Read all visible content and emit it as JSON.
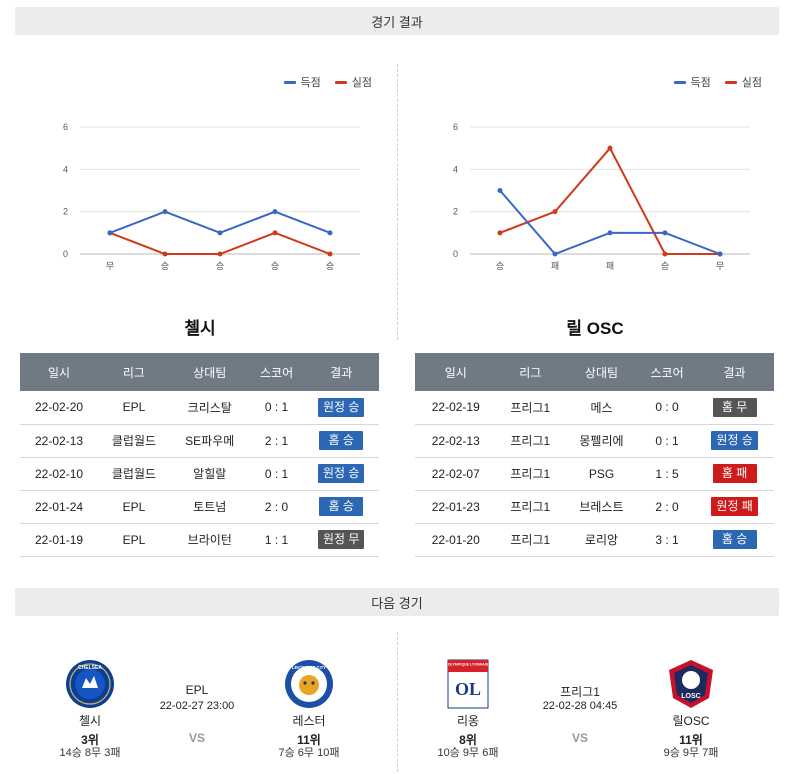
{
  "sections": {
    "results_title": "경기 결과",
    "next_title": "다음 경기"
  },
  "colors": {
    "scored": "#3a66c6",
    "conceded": "#d03a1a",
    "away_win": "#2b67b3",
    "home_win": "#2b67b3",
    "away_draw": "#555555",
    "home_draw": "#555555",
    "home_loss": "#cf1a1a",
    "away_loss": "#cf1a1a"
  },
  "legend": {
    "scored": "득점",
    "conceded": "실점"
  },
  "charts": [
    {
      "chart_data": {
        "type": "line",
        "categories": [
          "무",
          "승",
          "승",
          "승",
          "승"
        ],
        "series": [
          {
            "name": "득점",
            "values": [
              1,
              2,
              1,
              2,
              1
            ]
          },
          {
            "name": "실점",
            "values": [
              1,
              0,
              0,
              1,
              0
            ]
          }
        ],
        "yticks": [
          "0",
          "2",
          "4",
          "6"
        ],
        "ylim": [
          0,
          6
        ],
        "grid": true,
        "legend_position": "top-right"
      }
    },
    {
      "chart_data": {
        "type": "line",
        "categories": [
          "승",
          "패",
          "패",
          "승",
          "무"
        ],
        "series": [
          {
            "name": "득점",
            "values": [
              3,
              0,
              1,
              1,
              0
            ]
          },
          {
            "name": "실점",
            "values": [
              1,
              2,
              5,
              0,
              0
            ]
          }
        ],
        "yticks": [
          "0",
          "2",
          "4",
          "6"
        ],
        "ylim": [
          0,
          6
        ],
        "grid": true,
        "legend_position": "top-right"
      }
    }
  ],
  "teams": [
    {
      "name": "첼시",
      "headers": [
        "일시",
        "리그",
        "상대팀",
        "스코어",
        "결과"
      ],
      "rows": [
        {
          "date": "22-02-20",
          "league": "EPL",
          "opponent": "크리스탈",
          "score": "0 : 1",
          "result": "원정 승",
          "type": "away_win"
        },
        {
          "date": "22-02-13",
          "league": "클럽월드",
          "opponent": "SE파우메",
          "score": "2 : 1",
          "result": "홈 승",
          "type": "home_win"
        },
        {
          "date": "22-02-10",
          "league": "클럽월드",
          "opponent": "알힐랄",
          "score": "0 : 1",
          "result": "원정 승",
          "type": "away_win"
        },
        {
          "date": "22-01-24",
          "league": "EPL",
          "opponent": "토트넘",
          "score": "2 : 0",
          "result": "홈 승",
          "type": "home_win"
        },
        {
          "date": "22-01-19",
          "league": "EPL",
          "opponent": "브라이턴",
          "score": "1 : 1",
          "result": "원정 무",
          "type": "away_draw"
        }
      ]
    },
    {
      "name": "릴 OSC",
      "headers": [
        "일시",
        "리그",
        "상대팀",
        "스코어",
        "결과"
      ],
      "rows": [
        {
          "date": "22-02-19",
          "league": "프리그1",
          "opponent": "메스",
          "score": "0 : 0",
          "result": "홈 무",
          "type": "home_draw"
        },
        {
          "date": "22-02-13",
          "league": "프리그1",
          "opponent": "몽펠리에",
          "score": "0 : 1",
          "result": "원정 승",
          "type": "away_win"
        },
        {
          "date": "22-02-07",
          "league": "프리그1",
          "opponent": "PSG",
          "score": "1 : 5",
          "result": "홈 패",
          "type": "home_loss"
        },
        {
          "date": "22-01-23",
          "league": "프리그1",
          "opponent": "브레스트",
          "score": "2 : 0",
          "result": "원정 패",
          "type": "away_loss"
        },
        {
          "date": "22-01-20",
          "league": "프리그1",
          "opponent": "로리앙",
          "score": "3 : 1",
          "result": "홈 승",
          "type": "home_win"
        }
      ]
    }
  ],
  "next_matches": [
    {
      "league": "EPL",
      "time": "22-02-27 23:00",
      "vs": "VS",
      "home": {
        "name": "첼시",
        "rank": "3위",
        "record": "14승 8무 3패",
        "logo_text": "CHELSEA"
      },
      "away": {
        "name": "레스터",
        "rank": "11위",
        "record": "7승 6무 10패",
        "logo_text": "LEICESTER CITY"
      }
    },
    {
      "league": "프리그1",
      "time": "22-02-28 04:45",
      "vs": "VS",
      "home": {
        "name": "리옹",
        "rank": "8위",
        "record": "10승 9무 6패",
        "logo_text": "OLYMPIQUE LYONNAIS"
      },
      "away": {
        "name": "릴OSC",
        "rank": "11위",
        "record": "9승 9무 7패",
        "logo_text": "LOSC"
      }
    }
  ]
}
